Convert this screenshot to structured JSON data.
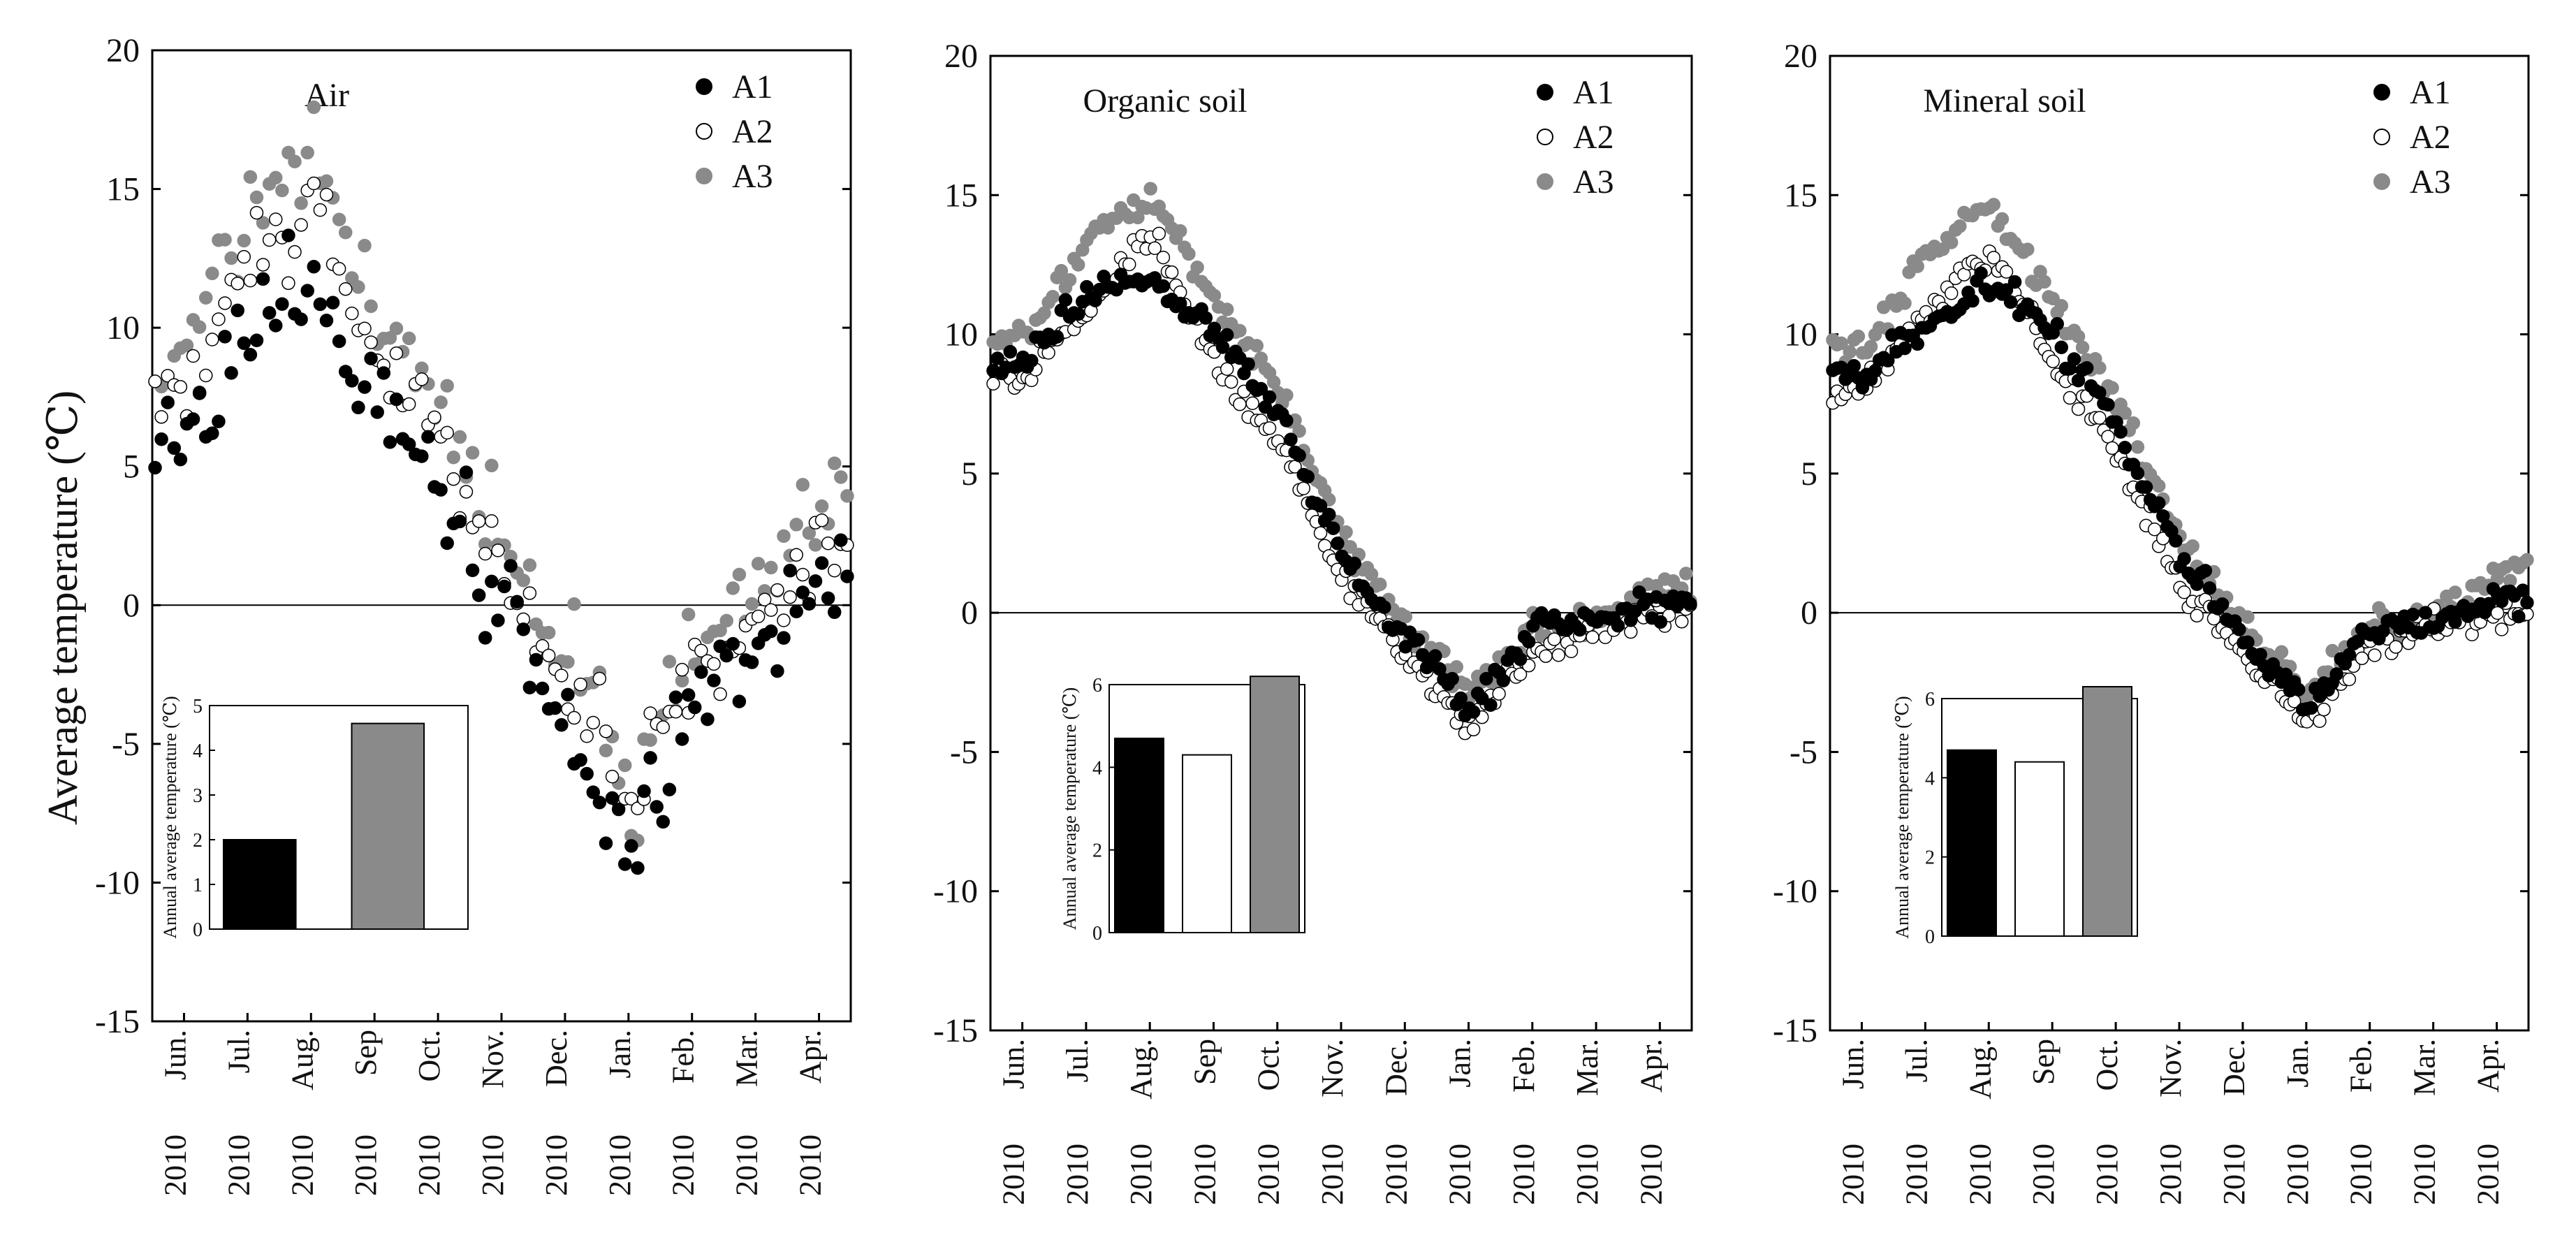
{
  "figure": {
    "ylabel": "Average temperature (℃)",
    "inset_ylabel": "Annual average temperature (℃)"
  },
  "colors": {
    "A1": "#000000",
    "A2": "#ffffff",
    "A3": "#8a8a8a",
    "axis": "#000000"
  },
  "chart_data": [
    {
      "type": "scatter",
      "title": "Air",
      "xlabel": "",
      "ylabel": "Average temperature (℃)",
      "ylim": [
        -15,
        20
      ],
      "yticks": [
        20,
        15,
        10,
        5,
        0,
        -5,
        -10,
        -15
      ],
      "month_labels": [
        [
          "Jun.",
          "2010"
        ],
        [
          "Jul.",
          "2010"
        ],
        [
          "Aug.",
          "2010"
        ],
        [
          "Sep",
          "2010"
        ],
        [
          "Oct.",
          "2010"
        ],
        [
          "Nov.",
          "2010"
        ],
        [
          "Dec.",
          "2010"
        ],
        [
          "Jan.",
          "2010"
        ],
        [
          "Feb.",
          "2010"
        ],
        [
          "Mar.",
          "2010"
        ],
        [
          "Apr.",
          "2010"
        ]
      ],
      "legend": [
        "A1",
        "A2",
        "A3"
      ],
      "series": [
        {
          "name": "A1",
          "monthly_mean": [
            6.0,
            10.5,
            12.0,
            7.0,
            4.5,
            -0.5,
            -4.0,
            -9.0,
            -3.5,
            -2.5,
            1.0
          ],
          "jitter": 2.8,
          "day_step": 3
        },
        {
          "name": "A2",
          "monthly_mean": [
            8.0,
            12.5,
            14.0,
            9.0,
            6.0,
            0.5,
            -2.5,
            -7.5,
            -2.0,
            -1.0,
            2.5
          ],
          "jitter": 2.5,
          "day_step": 3
        },
        {
          "name": "A3",
          "monthly_mean": [
            9.5,
            14.5,
            16.0,
            10.5,
            7.5,
            1.5,
            -1.5,
            -6.5,
            -1.0,
            0.0,
            3.5
          ],
          "jitter": 3.0,
          "day_step": 3
        }
      ],
      "inset": {
        "ylabel": "Annual average temperature (℃)",
        "ylim": [
          0,
          5
        ],
        "yticks": [
          0,
          1,
          2,
          3,
          4,
          5
        ],
        "bars": [
          {
            "name": "A1",
            "value": 2.0
          },
          {
            "name": "A3",
            "value": 4.6
          }
        ]
      }
    },
    {
      "type": "scatter",
      "title": "Organic soil",
      "xlabel": "",
      "ylabel": "",
      "ylim": [
        -15,
        20
      ],
      "yticks": [
        20,
        15,
        10,
        5,
        0,
        -5,
        -10,
        -15
      ],
      "month_labels": [
        [
          "Jun.",
          "2010"
        ],
        [
          "Jul.",
          "2010"
        ],
        [
          "Aug.",
          "2010"
        ],
        [
          "Sep",
          "2010"
        ],
        [
          "Oct.",
          "2010"
        ],
        [
          "Nov.",
          "2010"
        ],
        [
          "Dec.",
          "2010"
        ],
        [
          "Jan.",
          "2010"
        ],
        [
          "Feb.",
          "2010"
        ],
        [
          "Mar.",
          "2010"
        ],
        [
          "Apr.",
          "2010"
        ]
      ],
      "legend": [
        "A1",
        "A2",
        "A3"
      ],
      "series": [
        {
          "name": "A1",
          "monthly_mean": [
            9.0,
            11.5,
            12.0,
            10.0,
            7.0,
            2.0,
            -1.0,
            -3.5,
            -0.5,
            -0.3,
            0.3
          ],
          "jitter": 0.8,
          "day_step": 2
        },
        {
          "name": "A2",
          "monthly_mean": [
            8.5,
            11.0,
            13.5,
            9.0,
            6.0,
            1.0,
            -1.5,
            -4.0,
            -1.5,
            -0.5,
            0.0
          ],
          "jitter": 0.8,
          "day_step": 2
        },
        {
          "name": "A3",
          "monthly_mean": [
            10.0,
            13.5,
            15.0,
            11.0,
            8.0,
            2.5,
            -0.5,
            -3.0,
            -0.5,
            -0.2,
            1.0
          ],
          "jitter": 0.8,
          "day_step": 2
        }
      ],
      "inset": {
        "ylabel": "Annual average temperature (℃)",
        "ylim": [
          0,
          6
        ],
        "yticks": [
          0,
          2,
          4,
          6
        ],
        "bars": [
          {
            "name": "A1",
            "value": 4.7
          },
          {
            "name": "A2",
            "value": 4.3
          },
          {
            "name": "A3",
            "value": 6.2
          }
        ]
      }
    },
    {
      "type": "scatter",
      "title": "Mineral soil",
      "xlabel": "",
      "ylabel": "",
      "ylim": [
        -15,
        20
      ],
      "yticks": [
        20,
        15,
        10,
        5,
        0,
        -5,
        -10,
        -15
      ],
      "month_labels": [
        [
          "Jun.",
          "2010"
        ],
        [
          "Jul.",
          "2010"
        ],
        [
          "Aug.",
          "2010"
        ],
        [
          "Sep",
          "2010"
        ],
        [
          "Oct.",
          "2010"
        ],
        [
          "Nov.",
          "2010"
        ],
        [
          "Dec.",
          "2010"
        ],
        [
          "Jan.",
          "2010"
        ],
        [
          "Feb.",
          "2010"
        ],
        [
          "Mar.",
          "2010"
        ],
        [
          "Apr.",
          "2010"
        ]
      ],
      "legend": [
        "A1",
        "A2",
        "A3"
      ],
      "series": [
        {
          "name": "A1",
          "monthly_mean": [
            8.5,
            10.5,
            12.0,
            10.0,
            6.5,
            2.0,
            -1.0,
            -3.5,
            -0.5,
            -0.3,
            0.5
          ],
          "jitter": 0.8,
          "day_step": 2
        },
        {
          "name": "A2",
          "monthly_mean": [
            8.0,
            11.0,
            13.0,
            9.0,
            5.5,
            1.0,
            -1.5,
            -4.0,
            -1.0,
            -0.5,
            0.0
          ],
          "jitter": 0.8,
          "day_step": 2
        },
        {
          "name": "A3",
          "monthly_mean": [
            9.5,
            13.0,
            14.5,
            11.0,
            7.5,
            2.5,
            -0.5,
            -3.0,
            -0.5,
            -0.2,
            1.5
          ],
          "jitter": 0.8,
          "day_step": 2
        }
      ],
      "inset": {
        "ylabel": "Annual average temperature (℃)",
        "ylim": [
          0,
          6
        ],
        "yticks": [
          0,
          2,
          4,
          6
        ],
        "bars": [
          {
            "name": "A1",
            "value": 4.7
          },
          {
            "name": "A2",
            "value": 4.4
          },
          {
            "name": "A3",
            "value": 6.3
          }
        ]
      }
    }
  ]
}
